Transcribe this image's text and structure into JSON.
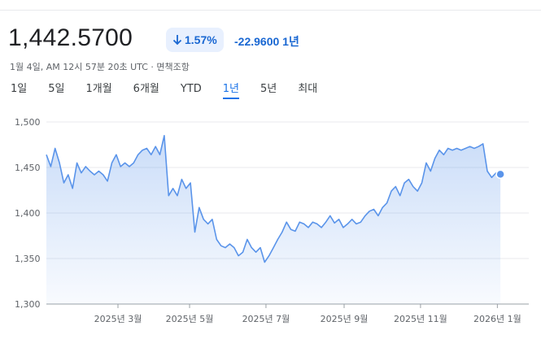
{
  "price": "1,442.5700",
  "change_percent": "1.57%",
  "change": "-22.9600",
  "change_period": "1년",
  "timestamp": "1월 4일, AM 12시 57분 20초 UTC",
  "separator": "·",
  "disclaimer": "면책조항",
  "tabs": [
    "1일",
    "5일",
    "1개월",
    "6개월",
    "YTD",
    "1년",
    "5년",
    "최대"
  ],
  "selected_tab": 5,
  "chart_data": {
    "type": "line",
    "color": "#5a94ea",
    "fill": true,
    "grid": true,
    "xlim": [
      0,
      110.5
    ],
    "ylim": [
      1300,
      1500
    ],
    "yticks": [
      {
        "value": 1300,
        "label": "1,300"
      },
      {
        "value": 1350,
        "label": "1,350"
      },
      {
        "value": 1400,
        "label": "1,400"
      },
      {
        "value": 1450,
        "label": "1,450"
      },
      {
        "value": 1500,
        "label": "1,500"
      }
    ],
    "xticks": [
      {
        "value": 16.4,
        "label": "2025년 3월"
      },
      {
        "value": 32.8,
        "label": "2025년 5월"
      },
      {
        "value": 50.3,
        "label": "2025년 7월"
      },
      {
        "value": 68.2,
        "label": "2025년 9월"
      },
      {
        "value": 85.7,
        "label": "2025년 11월"
      },
      {
        "value": 103.3,
        "label": "2026년 1월"
      }
    ],
    "values": [
      1464,
      1451,
      1471,
      1455,
      1433,
      1442,
      1427,
      1455,
      1444,
      1451,
      1446,
      1442,
      1446,
      1442,
      1435,
      1455,
      1464,
      1451,
      1455,
      1451,
      1455,
      1464,
      1469,
      1471,
      1464,
      1473,
      1464,
      1485,
      1419,
      1427,
      1419,
      1437,
      1427,
      1433,
      1379,
      1406,
      1393,
      1388,
      1393,
      1371,
      1364,
      1362,
      1366,
      1362,
      1353,
      1357,
      1371,
      1362,
      1357,
      1362,
      1346,
      1353,
      1362,
      1371,
      1379,
      1390,
      1382,
      1380,
      1390,
      1388,
      1384,
      1390,
      1388,
      1384,
      1390,
      1397,
      1389,
      1393,
      1384,
      1388,
      1393,
      1388,
      1390,
      1397,
      1402,
      1404,
      1397,
      1406,
      1411,
      1424,
      1429,
      1419,
      1433,
      1437,
      1429,
      1424,
      1433,
      1455,
      1446,
      1460,
      1469,
      1464,
      1471,
      1469,
      1471,
      1469,
      1471,
      1473,
      1471,
      1473,
      1476,
      1446,
      1439,
      1444,
      1442.57
    ]
  }
}
